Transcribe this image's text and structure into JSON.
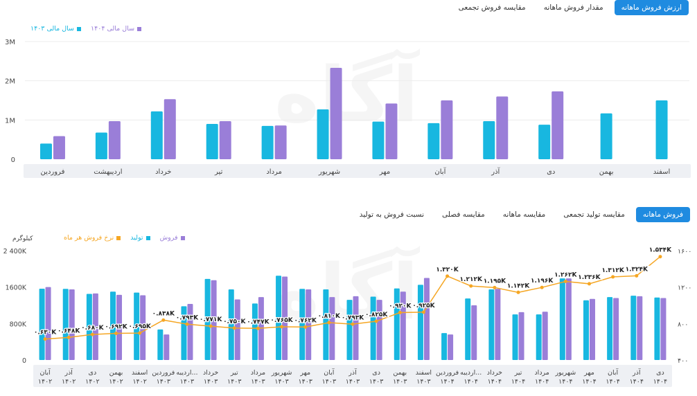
{
  "top_tabs": [
    "ارزش فروش ماهانه",
    "مقدار فروش ماهانه",
    "مقایسه فروش تجمعی"
  ],
  "bottom_tabs": [
    "فروش ماهانه",
    "مقایسه تولید تجمعی",
    "مقایسه ماهانه",
    "مقایسه فصلی",
    "نسبت فروش به تولید"
  ],
  "colors": {
    "accent": "#1f8be0",
    "cyan": "#18b7e0",
    "purple": "#9a7ed8",
    "orange": "#f5a623",
    "axis_bg": "#eef0f4"
  },
  "watermark": "آگاه",
  "chart_data": [
    {
      "type": "bar",
      "legend": [
        {
          "name": "سال مالی ۱۴۰۴",
          "color": "#9a7ed8"
        },
        {
          "name": "سال مالی ۱۴۰۳",
          "color": "#18b7e0"
        }
      ],
      "categories": [
        "فروردین",
        "اردیبهشت",
        "خرداد",
        "تیر",
        "مرداد",
        "شهریور",
        "مهر",
        "آبان",
        "آذر",
        "دی",
        "بهمن",
        "اسفند"
      ],
      "series": [
        {
          "name": "سال مالی ۱۴۰۳",
          "color": "#18b7e0",
          "values": [
            0.4,
            0.68,
            1.22,
            0.9,
            0.85,
            1.27,
            0.96,
            0.92,
            0.97,
            0.88,
            1.17,
            1.5
          ]
        },
        {
          "name": "سال مالی ۱۴۰۴",
          "color": "#9a7ed8",
          "values": [
            0.59,
            0.97,
            1.53,
            0.97,
            0.86,
            2.33,
            1.42,
            1.5,
            1.6,
            1.73,
            null,
            null
          ]
        }
      ],
      "ylim": [
        0,
        3
      ],
      "yticks": [
        {
          "value": 0,
          "label": "0"
        },
        {
          "value": 1,
          "label": "1M"
        },
        {
          "value": 2,
          "label": "2M"
        },
        {
          "value": 3,
          "label": "3M"
        }
      ]
    },
    {
      "type": "bar",
      "legend": [
        {
          "name": "فروش",
          "color": "#9a7ed8"
        },
        {
          "name": "تولید",
          "color": "#18b7e0"
        },
        {
          "name": "نرخ فروش هر ماه",
          "color": "#f5a623"
        }
      ],
      "left_unit": "کیلوگرم",
      "right_unit": "",
      "categories": [
        [
          "آبان",
          "۱۴۰۲"
        ],
        [
          "آذر",
          "۱۴۰۲"
        ],
        [
          "دی",
          "۱۴۰۲"
        ],
        [
          "بهمن",
          "۱۴۰۲"
        ],
        [
          "اسفند",
          "۱۴۰۲"
        ],
        [
          "فروردین",
          "۱۴۰۳"
        ],
        [
          "اردیبه...",
          "۱۴۰۳"
        ],
        [
          "خرداد",
          "۱۴۰۳"
        ],
        [
          "تیر",
          "۱۴۰۳"
        ],
        [
          "مرداد",
          "۱۴۰۳"
        ],
        [
          "شهریور",
          "۱۴۰۳"
        ],
        [
          "مهر",
          "۱۴۰۳"
        ],
        [
          "آبان",
          "۱۴۰۳"
        ],
        [
          "آذر",
          "۱۴۰۳"
        ],
        [
          "دی",
          "۱۴۰۳"
        ],
        [
          "بهمن",
          "۱۴۰۳"
        ],
        [
          "اسفند",
          "۱۴۰۳"
        ],
        [
          "فروردین",
          "۱۴۰۴"
        ],
        [
          "اردیبه...",
          "۱۴۰۴"
        ],
        [
          "خرداد",
          "۱۴۰۴"
        ],
        [
          "تیر",
          "۱۴۰۴"
        ],
        [
          "مرداد",
          "۱۴۰۴"
        ],
        [
          "شهریور",
          "۱۴۰۴"
        ],
        [
          "مهر",
          "۱۴۰۴"
        ],
        [
          "آبان",
          "۱۴۰۴"
        ],
        [
          "آذر",
          "۱۴۰۴"
        ],
        [
          "دی",
          "۱۴۰۴"
        ]
      ],
      "series": [
        {
          "name": "تولید",
          "color": "#18b7e0",
          "axis": "left",
          "values": [
            1565,
            1560,
            1450,
            1500,
            1480,
            670,
            1180,
            1780,
            1550,
            1240,
            1850,
            1560,
            1550,
            1320,
            1390,
            1570,
            1650,
            590,
            1350,
            1550,
            1000,
            1000,
            1790,
            1310,
            1380,
            1410,
            1370
          ]
        },
        {
          "name": "فروش",
          "color": "#9a7ed8",
          "axis": "left",
          "values": [
            1600,
            1550,
            1460,
            1430,
            1420,
            560,
            1230,
            1750,
            1330,
            1380,
            1830,
            1550,
            1380,
            1400,
            1320,
            1500,
            1800,
            560,
            1200,
            1560,
            1050,
            1060,
            1790,
            1340,
            1360,
            1400,
            1360
          ]
        },
        {
          "name": "نرخ فروش هر ماه",
          "color": "#f5a623",
          "axis": "right",
          "values": [
            630,
            648,
            680,
            692,
            695,
            838,
            793,
            771,
            750,
            747,
            765,
            762,
            810,
            793,
            825,
            920,
            925,
            1320,
            1212,
            1195,
            1142,
            1196,
            1262,
            1236,
            1312,
            1324,
            1534
          ],
          "labels": [
            "۰.۶۳۰K",
            "۰.۶۴۸K",
            "۰.۶۸۰K",
            "۰.۶۹۲K",
            "۰.۶۹۵K",
            "۰.۸۳۸K",
            "۰.۷۹۳K",
            "۰.۷۷۱K",
            "۰.۷۵۰K",
            "۰.۷۴۷K",
            "۰.۷۶۵K",
            "۰.۷۶۲K",
            "۰.۸۱۰K",
            "۰.۷۹۳K",
            "۰.۸۲۵K",
            "۰.۹۲۰K",
            "۰.۹۲۵K",
            "۱.۳۲۰K",
            "۱.۲۱۲K",
            "۱.۱۹۵K",
            "۱.۱۴۲K",
            "۱.۱۹۶K",
            "۱.۲۶۲K",
            "۱.۲۳۶K",
            "۱.۳۱۲K",
            "۱.۳۲۴K",
            "۱.۵۳۴K"
          ]
        }
      ],
      "ylim_left": [
        0,
        2400
      ],
      "yticks_left": [
        {
          "value": 0,
          "label": "0"
        },
        {
          "value": 800,
          "label": "800K"
        },
        {
          "value": 1600,
          "label": "1600K"
        },
        {
          "value": 2400,
          "label": "2 400K"
        }
      ],
      "ylim_right": [
        400,
        1600
      ],
      "yticks_right": [
        {
          "value": 400,
          "label": "۴۰۰"
        },
        {
          "value": 800,
          "label": "۸۰۰"
        },
        {
          "value": 1200,
          "label": "۱۲۰۰"
        },
        {
          "value": 1600,
          "label": "۱۶۰۰"
        }
      ]
    }
  ]
}
